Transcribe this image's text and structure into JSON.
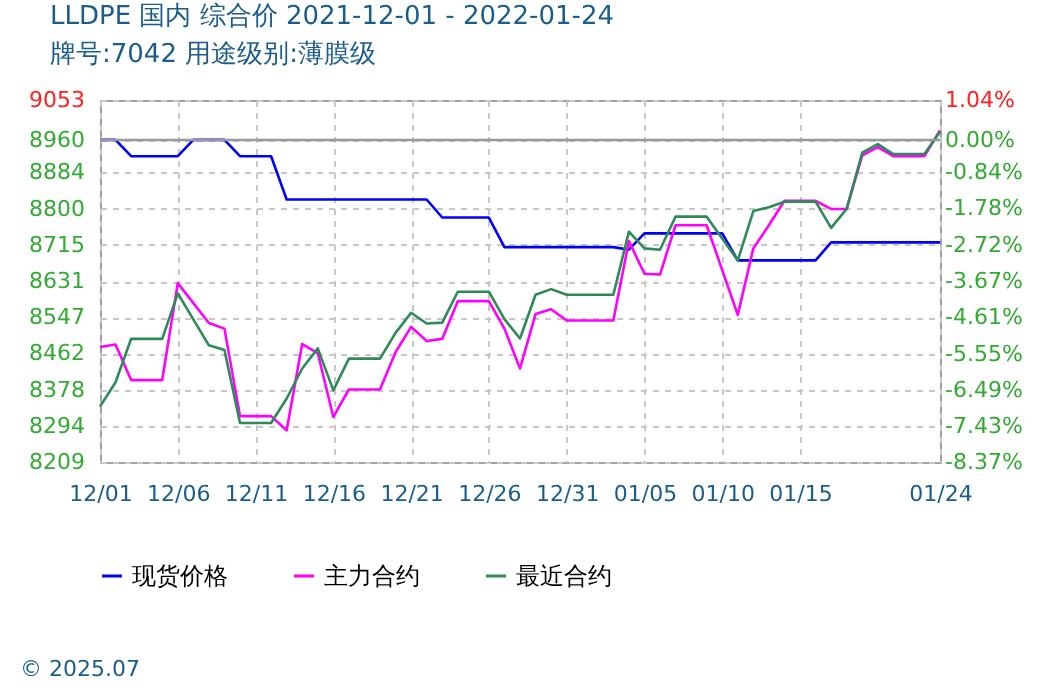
{
  "chart_data": {
    "type": "line",
    "title": "LLDPE 国内 综合价 2021-12-01 - 2022-01-24",
    "subtitle": "牌号:7042 用途级别:薄膜级",
    "x": [
      "2021-12-01",
      "2021-12-02",
      "2021-12-03",
      "2021-12-05",
      "2021-12-06",
      "2021-12-08",
      "2021-12-09",
      "2021-12-10",
      "2021-12-12",
      "2021-12-13",
      "2021-12-14",
      "2021-12-15",
      "2021-12-16",
      "2021-12-17",
      "2021-12-19",
      "2021-12-20",
      "2021-12-21",
      "2021-12-22",
      "2021-12-23",
      "2021-12-24",
      "2021-12-26",
      "2021-12-27",
      "2021-12-28",
      "2021-12-29",
      "2021-12-30",
      "2021-12-31",
      "2022-01-03",
      "2022-01-04",
      "2022-01-05",
      "2022-01-06",
      "2022-01-07",
      "2022-01-09",
      "2022-01-11",
      "2022-01-12",
      "2022-01-13",
      "2022-01-14",
      "2022-01-16",
      "2022-01-17",
      "2022-01-18",
      "2022-01-19",
      "2022-01-20",
      "2022-01-21",
      "2022-01-23",
      "2022-01-24"
    ],
    "series": [
      {
        "name": "现货价格",
        "color": "#0000ff",
        "x": [
          "2021-12-01",
          "2021-12-02",
          "2021-12-03",
          "2021-12-06",
          "2021-12-07",
          "2021-12-09",
          "2021-12-10",
          "2021-12-12",
          "2021-12-13",
          "2021-12-22",
          "2021-12-23",
          "2021-12-26",
          "2021-12-27",
          "2022-01-03",
          "2022-01-04",
          "2022-01-05",
          "2022-01-10",
          "2022-01-11",
          "2022-01-16",
          "2022-01-17",
          "2022-01-24"
        ],
        "values": [
          8960,
          8960,
          8922,
          8922,
          8960,
          8960,
          8922,
          8922,
          8821,
          8821,
          8779,
          8779,
          8710,
          8710,
          8704,
          8742,
          8742,
          8679,
          8679,
          8721,
          8721
        ]
      },
      {
        "name": "主力合约",
        "color": "#ff00ff",
        "values": [
          8477,
          8483,
          8400,
          8400,
          8626,
          8533,
          8520,
          8316,
          8316,
          8283,
          8484,
          8463,
          8314,
          8378,
          8378,
          8465,
          8524,
          8491,
          8496,
          8584,
          8584,
          8520,
          8427,
          8554,
          8565,
          8539,
          8539,
          8724,
          8648,
          8646,
          8761,
          8761,
          8552,
          8707,
          8761,
          8818,
          8818,
          8799,
          8799,
          8924,
          8943,
          8922,
          8922,
          8982
        ]
      },
      {
        "name": "最近合约",
        "color": "#2e8b57",
        "values": [
          8338,
          8395,
          8496,
          8496,
          8602,
          8481,
          8470,
          8300,
          8300,
          8357,
          8427,
          8474,
          8376,
          8450,
          8450,
          8510,
          8557,
          8532,
          8534,
          8606,
          8606,
          8542,
          8497,
          8599,
          8612,
          8599,
          8599,
          8746,
          8707,
          8704,
          8781,
          8781,
          8679,
          8794,
          8803,
          8816,
          8816,
          8755,
          8799,
          8930,
          8950,
          8927,
          8927,
          8979
        ]
      }
    ],
    "xlim": [
      "2021-12-01",
      "2022-01-24"
    ],
    "xticks": [
      {
        "value": "2021-12-01",
        "label": "12/01"
      },
      {
        "value": "2021-12-06",
        "label": "12/06"
      },
      {
        "value": "2021-12-11",
        "label": "12/11"
      },
      {
        "value": "2021-12-16",
        "label": "12/16"
      },
      {
        "value": "2021-12-21",
        "label": "12/21"
      },
      {
        "value": "2021-12-26",
        "label": "12/26"
      },
      {
        "value": "2021-12-31",
        "label": "12/31"
      },
      {
        "value": "2022-01-05",
        "label": "01/05"
      },
      {
        "value": "2022-01-10",
        "label": "01/10"
      },
      {
        "value": "2022-01-15",
        "label": "01/15"
      },
      {
        "value": "2022-01-24",
        "label": "01/24"
      }
    ],
    "ylim": [
      8209,
      9053
    ],
    "yticks": [
      8209,
      8294,
      8378,
      8462,
      8547,
      8631,
      8715,
      8800,
      8884,
      8960,
      9053
    ],
    "y2lim": [
      -8.37,
      1.04
    ],
    "y2ticks": [
      {
        "value": -8.37,
        "label": "-8.37%"
      },
      {
        "value": -7.43,
        "label": "-7.43%"
      },
      {
        "value": -6.49,
        "label": "-6.49%"
      },
      {
        "value": -5.55,
        "label": "-5.55%"
      },
      {
        "value": -4.61,
        "label": "-4.61%"
      },
      {
        "value": -3.67,
        "label": "-3.67%"
      },
      {
        "value": -2.72,
        "label": "-2.72%"
      },
      {
        "value": -1.78,
        "label": "-1.78%"
      },
      {
        "value": -0.84,
        "label": "-0.84%"
      },
      {
        "value": 0,
        "label": "0.00%"
      },
      {
        "value": 1.04,
        "label": "1.04%"
      }
    ],
    "ref_lines": [
      {
        "axis": "y2",
        "value": 0,
        "color": "#999999"
      }
    ],
    "annotations": [
      "© 2025.07"
    ],
    "grid": true,
    "legend": "bottom",
    "line_style": "solid"
  }
}
